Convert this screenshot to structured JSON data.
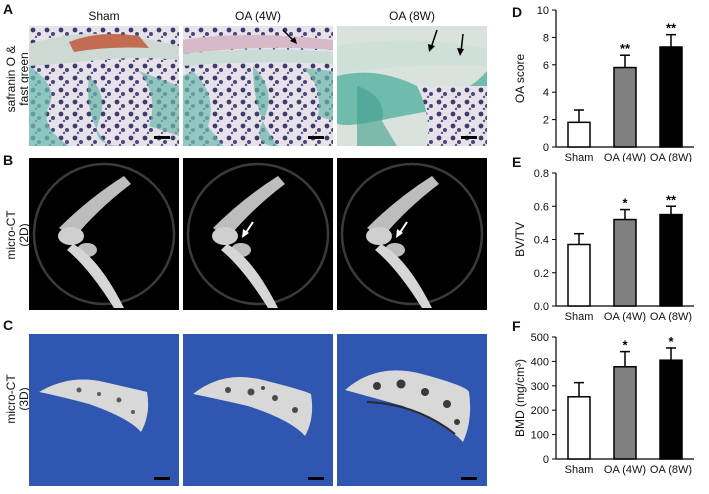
{
  "panel_labels": {
    "A": "A",
    "B": "B",
    "C": "C",
    "D": "D",
    "E": "E",
    "F": "F"
  },
  "columns": [
    "Sham",
    "OA (4W)",
    "OA (8W)"
  ],
  "row_labels": {
    "A": [
      "safranin O &",
      "fast green"
    ],
    "B": [
      "micro-CT",
      "(2D)"
    ],
    "C": [
      "micro-CT",
      "(3D)"
    ]
  },
  "colors": {
    "sham_bar": "#ffffff",
    "oa4_bar": "#808080",
    "oa8_bar": "#000000",
    "ct3d_bg": "#2f56b0",
    "histo_bg": "#dfe7e1"
  },
  "chart_data": [
    {
      "id": "D",
      "type": "bar",
      "categories": [
        "Sham",
        "OA (4W)",
        "OA (8W)"
      ],
      "values": [
        1.8,
        5.8,
        7.3
      ],
      "errors": [
        0.9,
        0.9,
        0.9
      ],
      "significance": [
        "",
        "**",
        "**"
      ],
      "ylabel": "OA score",
      "ylim": [
        0,
        10
      ],
      "yticks": [
        "0",
        "2",
        "4",
        "6",
        "8",
        "10"
      ],
      "grid": false
    },
    {
      "id": "E",
      "type": "bar",
      "categories": [
        "Sham",
        "OA (4W)",
        "OA (8W)"
      ],
      "values": [
        0.37,
        0.52,
        0.55
      ],
      "errors": [
        0.065,
        0.06,
        0.05
      ],
      "significance": [
        "",
        "*",
        "**"
      ],
      "ylabel": "BV/TV",
      "ylim": [
        0,
        0.8
      ],
      "yticks": [
        "0.0",
        "0.2",
        "0.4",
        "0.6",
        "0.8"
      ],
      "grid": false
    },
    {
      "id": "F",
      "type": "bar",
      "categories": [
        "Sham",
        "OA (4W)",
        "OA (8W)"
      ],
      "values": [
        255,
        378,
        405
      ],
      "errors": [
        58,
        62,
        50
      ],
      "significance": [
        "",
        "*",
        "*"
      ],
      "ylabel": "BMD (mg/cm³)",
      "ylim": [
        0,
        500
      ],
      "yticks": [
        "0",
        "100",
        "200",
        "300",
        "400",
        "500"
      ],
      "grid": false
    }
  ]
}
